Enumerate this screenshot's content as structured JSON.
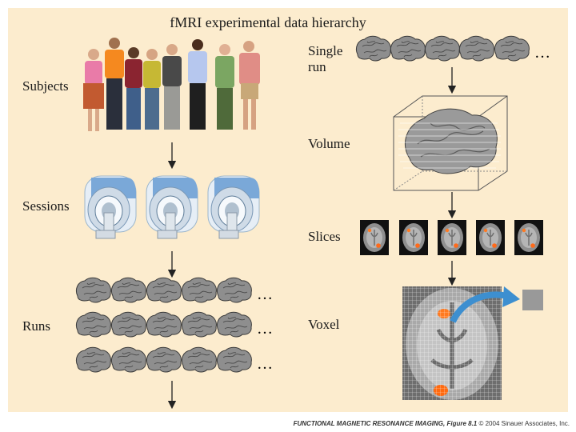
{
  "title": "fMRI experimental data hierarchy",
  "labels": {
    "subjects": "Subjects",
    "sessions": "Sessions",
    "runs": "Runs",
    "single_run_line1": "Single",
    "single_run_line2": "run",
    "volume": "Volume",
    "slices": "Slices",
    "voxel": "Voxel"
  },
  "ellipsis": "…",
  "caption": {
    "book": "FUNCTIONAL MAGNETIC RESONANCE IMAGING, Figure 8.1",
    "copyright": "© 2004 Sinauer Associates, Inc."
  },
  "colors": {
    "panel": "#fcecce",
    "arrow_blue": "#3d8fd0",
    "voxel_gray": "#999999"
  }
}
